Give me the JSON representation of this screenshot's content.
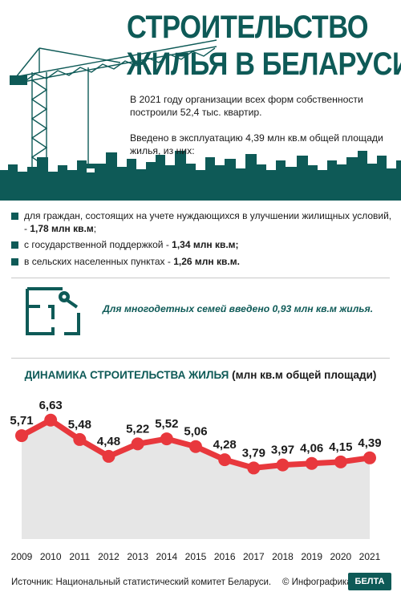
{
  "header": {
    "title_line1": "СТРОИТЕЛЬСТВО",
    "title_line2": "ЖИЛЬЯ В БЕЛАРУСИ"
  },
  "intro": {
    "p1": "В 2021 году организации всех форм собственности построили 52,4 тыс. квартир.",
    "p2": "Введено в эксплуатацию 4,39 млн кв.м общей площади жилья, из них:"
  },
  "bullets": [
    {
      "text": "для граждан, состоящих на учете нуждающихся в улучшении жилищных условий, - ",
      "value": "1,78 млн кв.м",
      "tail": ";"
    },
    {
      "text": "с государственной поддержкой - ",
      "value": "1,34 млн кв.м;",
      "tail": ""
    },
    {
      "text": "в сельских населенных пунктах - ",
      "value": "1,26 млн кв.м.",
      "tail": ""
    }
  ],
  "family_note": "Для многодетных семей введено 0,93 млн кв.м жилья.",
  "chart_title_main": "ДИНАМИКА СТРОИТЕЛЬСТВА ЖИЛЬЯ",
  "chart_title_unit": "(млн кв.м общей площади)",
  "chart_data": {
    "type": "line",
    "title": "ДИНАМИКА СТРОИТЕЛЬСТВА ЖИЛЬЯ (млн кв.м общей площади)",
    "x": [
      "2009",
      "2010",
      "2011",
      "2012",
      "2013",
      "2014",
      "2015",
      "2016",
      "2017",
      "2018",
      "2019",
      "2020",
      "2021"
    ],
    "values": [
      5.71,
      6.63,
      5.48,
      4.48,
      5.22,
      5.52,
      5.06,
      4.28,
      3.79,
      3.97,
      4.06,
      4.15,
      4.39
    ],
    "labels": [
      "5,71",
      "6,63",
      "5,48",
      "4,48",
      "5,22",
      "5,52",
      "5,06",
      "4,28",
      "3,79",
      "3,97",
      "4,06",
      "4,15",
      "4,39"
    ],
    "ylim": [
      0,
      7
    ],
    "grid": false,
    "line_color": "#e8383d",
    "area_color": "#e6e6e6"
  },
  "footer": {
    "source": "Источник: Национальный статистический комитет Беларуси.",
    "credit": "© Инфографика",
    "logo": "БЕЛТА"
  },
  "colors": {
    "accent": "#0e5a57",
    "line": "#e8383d"
  }
}
